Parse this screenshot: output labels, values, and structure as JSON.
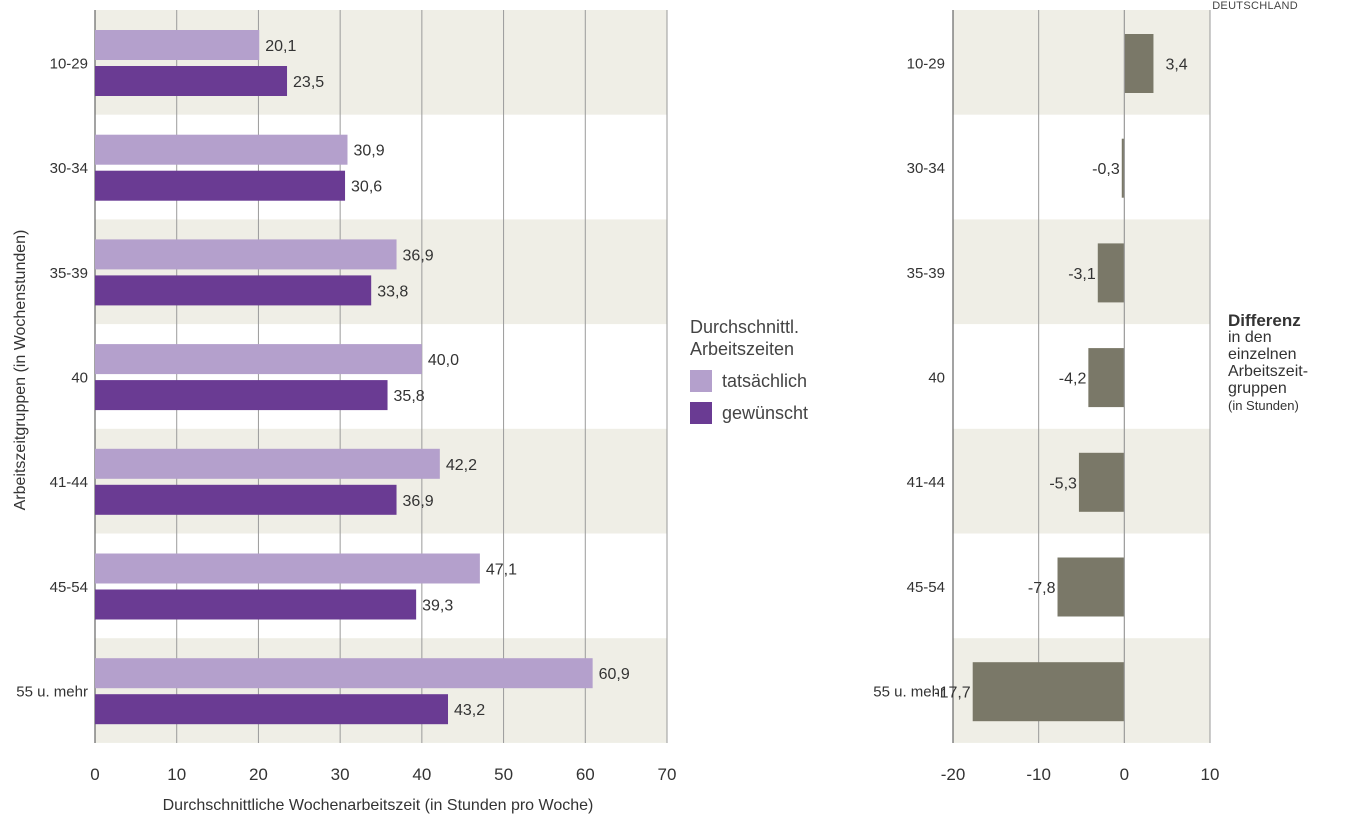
{
  "corner_label": "DEUTSCHLAND",
  "colors": {
    "band": "#efeee6",
    "grid": "#9a9a9a",
    "actual": "#b4a0cc",
    "desired": "#6a3b93",
    "diff": "#7a7868",
    "text": "#333333"
  },
  "legend": {
    "title_line1": "Durchschnittl.",
    "title_line2": "Arbeitszeiten",
    "actual_label": "tatsächlich",
    "desired_label": "gewünscht"
  },
  "diff_note": {
    "bold": "Differenz",
    "line1": "in den",
    "line2": "einzelnen",
    "line3": "Arbeitszeit-",
    "line4": "gruppen",
    "small": "(in Stunden)"
  },
  "chart_data": [
    {
      "type": "bar",
      "orientation": "horizontal",
      "categories": [
        "10-29",
        "30-34",
        "35-39",
        "40",
        "41-44",
        "45-54",
        "55 u. mehr"
      ],
      "series": [
        {
          "name": "tatsächlich",
          "values": [
            20.1,
            30.9,
            36.9,
            40.0,
            42.2,
            47.1,
            60.9
          ],
          "labels": [
            "20,1",
            "30,9",
            "36,9",
            "40,0",
            "42,2",
            "47,1",
            "60,9"
          ]
        },
        {
          "name": "gewünscht",
          "values": [
            23.5,
            30.6,
            33.8,
            35.8,
            36.9,
            39.3,
            43.2
          ],
          "labels": [
            "23,5",
            "30,6",
            "33,8",
            "35,8",
            "36,9",
            "39,3",
            "43,2"
          ]
        }
      ],
      "xlabel": "Durchschnittliche Wochenarbeitszeit (in Stunden pro Woche)",
      "ylabel": "Arbeitszeitgruppen (in Wochenstunden)",
      "xlim": [
        0,
        70
      ],
      "xticks": [
        0,
        10,
        20,
        30,
        40,
        50,
        60,
        70
      ],
      "grid": true,
      "legend_position": "right"
    },
    {
      "type": "bar",
      "orientation": "horizontal",
      "categories": [
        "10-29",
        "30-34",
        "35-39",
        "40",
        "41-44",
        "45-54",
        "55 u. mehr"
      ],
      "values": [
        3.4,
        -0.3,
        -3.1,
        -4.2,
        -5.3,
        -7.8,
        -17.7
      ],
      "labels": [
        "3,4",
        "-0,3",
        "-3,1",
        "-4,2",
        "-5,3",
        "-7,8",
        "-17,7"
      ],
      "xlim": [
        -20,
        10
      ],
      "xticks": [
        -20,
        -10,
        0,
        10
      ],
      "grid": true
    }
  ]
}
